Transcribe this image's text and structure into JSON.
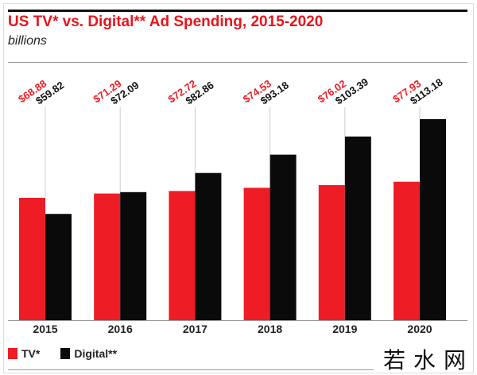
{
  "colors": {
    "tv": "#ee1c25",
    "digital": "#0a0a0a",
    "title": "#e8141c"
  },
  "watermark": "若水网",
  "chart_data": {
    "type": "bar",
    "title": "US TV* vs. Digital** Ad Spending, 2015-2020",
    "subtitle": "billions",
    "xlabel": "",
    "ylabel": "",
    "ylim": [
      0,
      120
    ],
    "grid": false,
    "legend_position": "bottom-left",
    "categories": [
      "2015",
      "2016",
      "2017",
      "2018",
      "2019",
      "2020"
    ],
    "series": [
      {
        "name": "TV*",
        "values": [
          68.88,
          71.29,
          72.72,
          74.53,
          76.02,
          77.93
        ],
        "labels": [
          "$68.88",
          "$71.29",
          "$72.72",
          "$74.53",
          "$76.02",
          "$77.93"
        ]
      },
      {
        "name": "Digital**",
        "values": [
          59.82,
          72.09,
          82.86,
          93.18,
          103.39,
          113.18
        ],
        "labels": [
          "$59.82",
          "$72.09",
          "$82.86",
          "$93.18",
          "$103.39",
          "$113.18"
        ]
      }
    ]
  }
}
